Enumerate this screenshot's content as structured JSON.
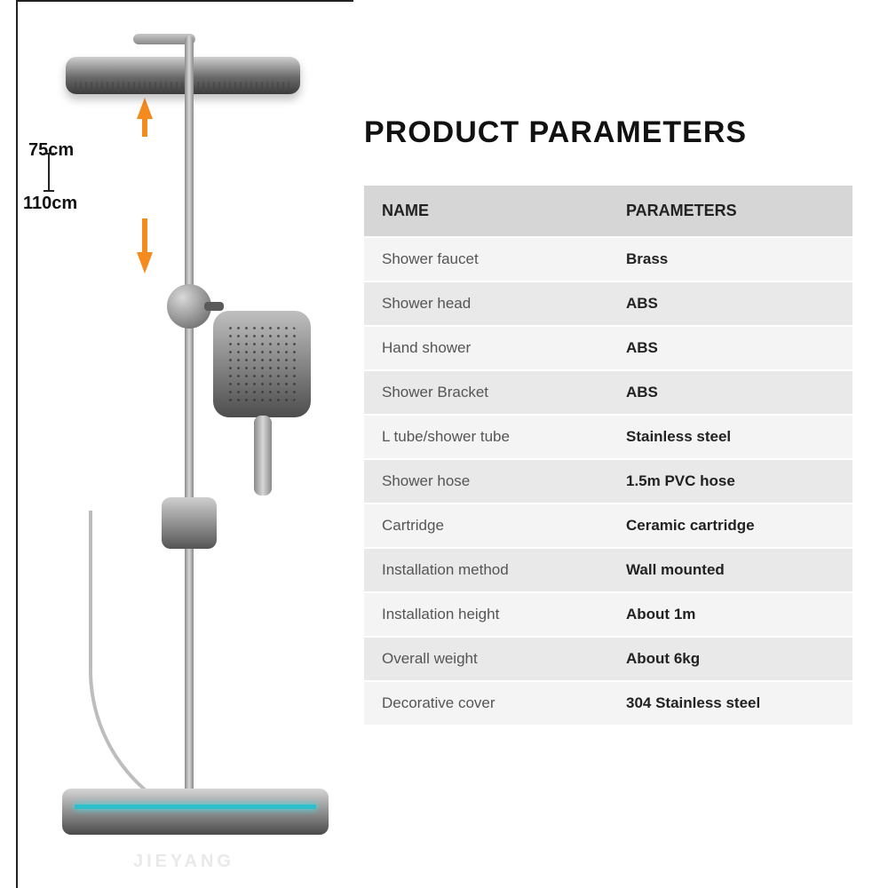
{
  "title": "PRODUCT PARAMETERS",
  "title_fontsize": 34,
  "title_color": "#111111",
  "dimensions": {
    "min_label": "75cm",
    "max_label": "110cm",
    "arrow_color": "#f58a1f"
  },
  "watermark": "JIEYANG",
  "table": {
    "header_bg": "#d6d6d6",
    "row_odd_bg": "#f4f4f4",
    "row_even_bg": "#e9e9e9",
    "name_color": "#555555",
    "value_color": "#222222",
    "header_fontsize": 18,
    "cell_fontsize": 17,
    "columns": [
      "NAME",
      "PARAMETERS"
    ],
    "rows": [
      [
        "Shower faucet",
        "Brass"
      ],
      [
        "Shower head",
        "ABS"
      ],
      [
        "Hand shower",
        "ABS"
      ],
      [
        "Shower Bracket",
        "ABS"
      ],
      [
        "L tube/shower tube",
        "Stainless steel"
      ],
      [
        "Shower hose",
        "1.5m PVC hose"
      ],
      [
        "Cartridge",
        "Ceramic cartridge"
      ],
      [
        "Installation method",
        "Wall mounted"
      ],
      [
        "Installation height",
        "About 1m"
      ],
      [
        "Overall weight",
        "About 6kg"
      ],
      [
        "Decorative cover",
        "304 Stainless steel"
      ]
    ]
  },
  "colors": {
    "background": "#ffffff",
    "metal_light": "#d7d7d7",
    "metal_dark": "#5a5a5a",
    "accent_teal": "#2fbecb"
  }
}
